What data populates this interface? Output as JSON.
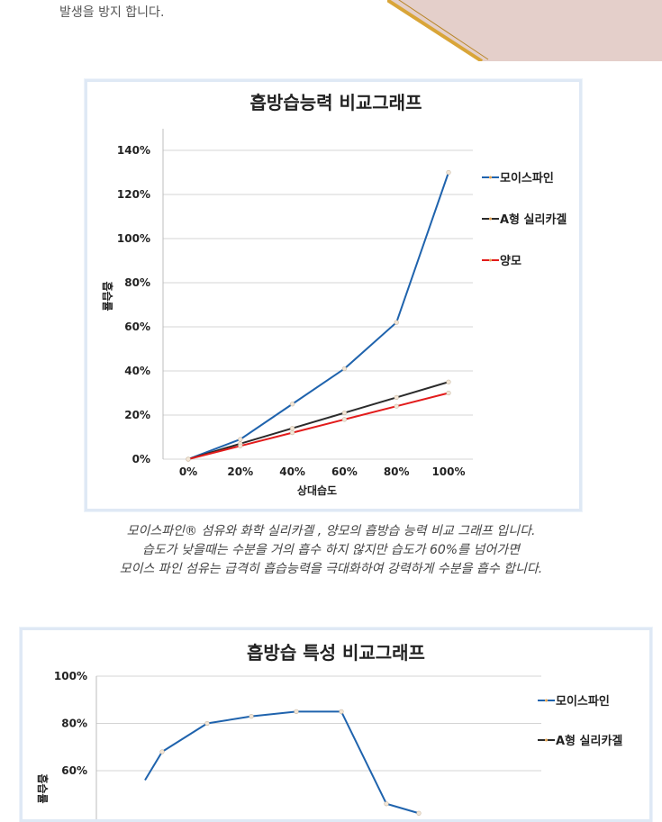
{
  "intro": {
    "tail_text": "발생을 방지 합니다."
  },
  "caption": {
    "lines": [
      "모이스파인® 섬유와  화학 실리카겔 , 양모의 흡방습 능력 비교 그래프 입니다.",
      "습도가 낮을때는 수분을 거의 흡수 하지 않지만 습도가 60%를 넘어가면",
      "모이스 파인 섬유는 급격히 흡습능력을 극대화하여 강력하게 수분을 흡수 합니다."
    ]
  },
  "colors": {
    "moisfine": "#1f63ad",
    "silica": "#2b2b2b",
    "wool": "#e21b1b",
    "grid": "#d4d4d4",
    "frame": "#dfe9f5"
  },
  "chart_data": [
    {
      "type": "line",
      "title": "흡방습능력 비교그래프",
      "xlabel": "상대습도",
      "ylabel": "흡습률",
      "x": [
        "0%",
        "20%",
        "40%",
        "60%",
        "80%",
        "100%"
      ],
      "y_ticks": [
        "0%",
        "20%",
        "40%",
        "60%",
        "80%",
        "100%",
        "120%",
        "140%"
      ],
      "ylim": [
        0,
        140
      ],
      "grid": true,
      "legend_position": "right",
      "series": [
        {
          "name": "모이스파인",
          "color": "#1f63ad",
          "values": [
            0,
            9,
            25,
            41,
            62,
            130
          ]
        },
        {
          "name": "A형 실리카겔",
          "color": "#2b2b2b",
          "values": [
            0,
            7,
            14,
            21,
            28,
            35
          ]
        },
        {
          "name": "양모",
          "color": "#e21b1b",
          "values": [
            0,
            6,
            12,
            18,
            24,
            30
          ]
        }
      ]
    },
    {
      "type": "line",
      "title": "흡방습 특성 비교그래프",
      "ylabel": "흡습률",
      "y_ticks": [
        "60%",
        "80%",
        "100%"
      ],
      "ylim_visible": [
        60,
        100
      ],
      "grid": true,
      "legend_position": "right",
      "series": [
        {
          "name": "모이스파인",
          "color": "#1f63ad",
          "values": [
            56,
            68,
            80,
            83,
            85,
            85,
            46,
            42
          ]
        },
        {
          "name": "A형 실리카겔",
          "color": "#2b2b2b",
          "values": []
        }
      ]
    }
  ]
}
